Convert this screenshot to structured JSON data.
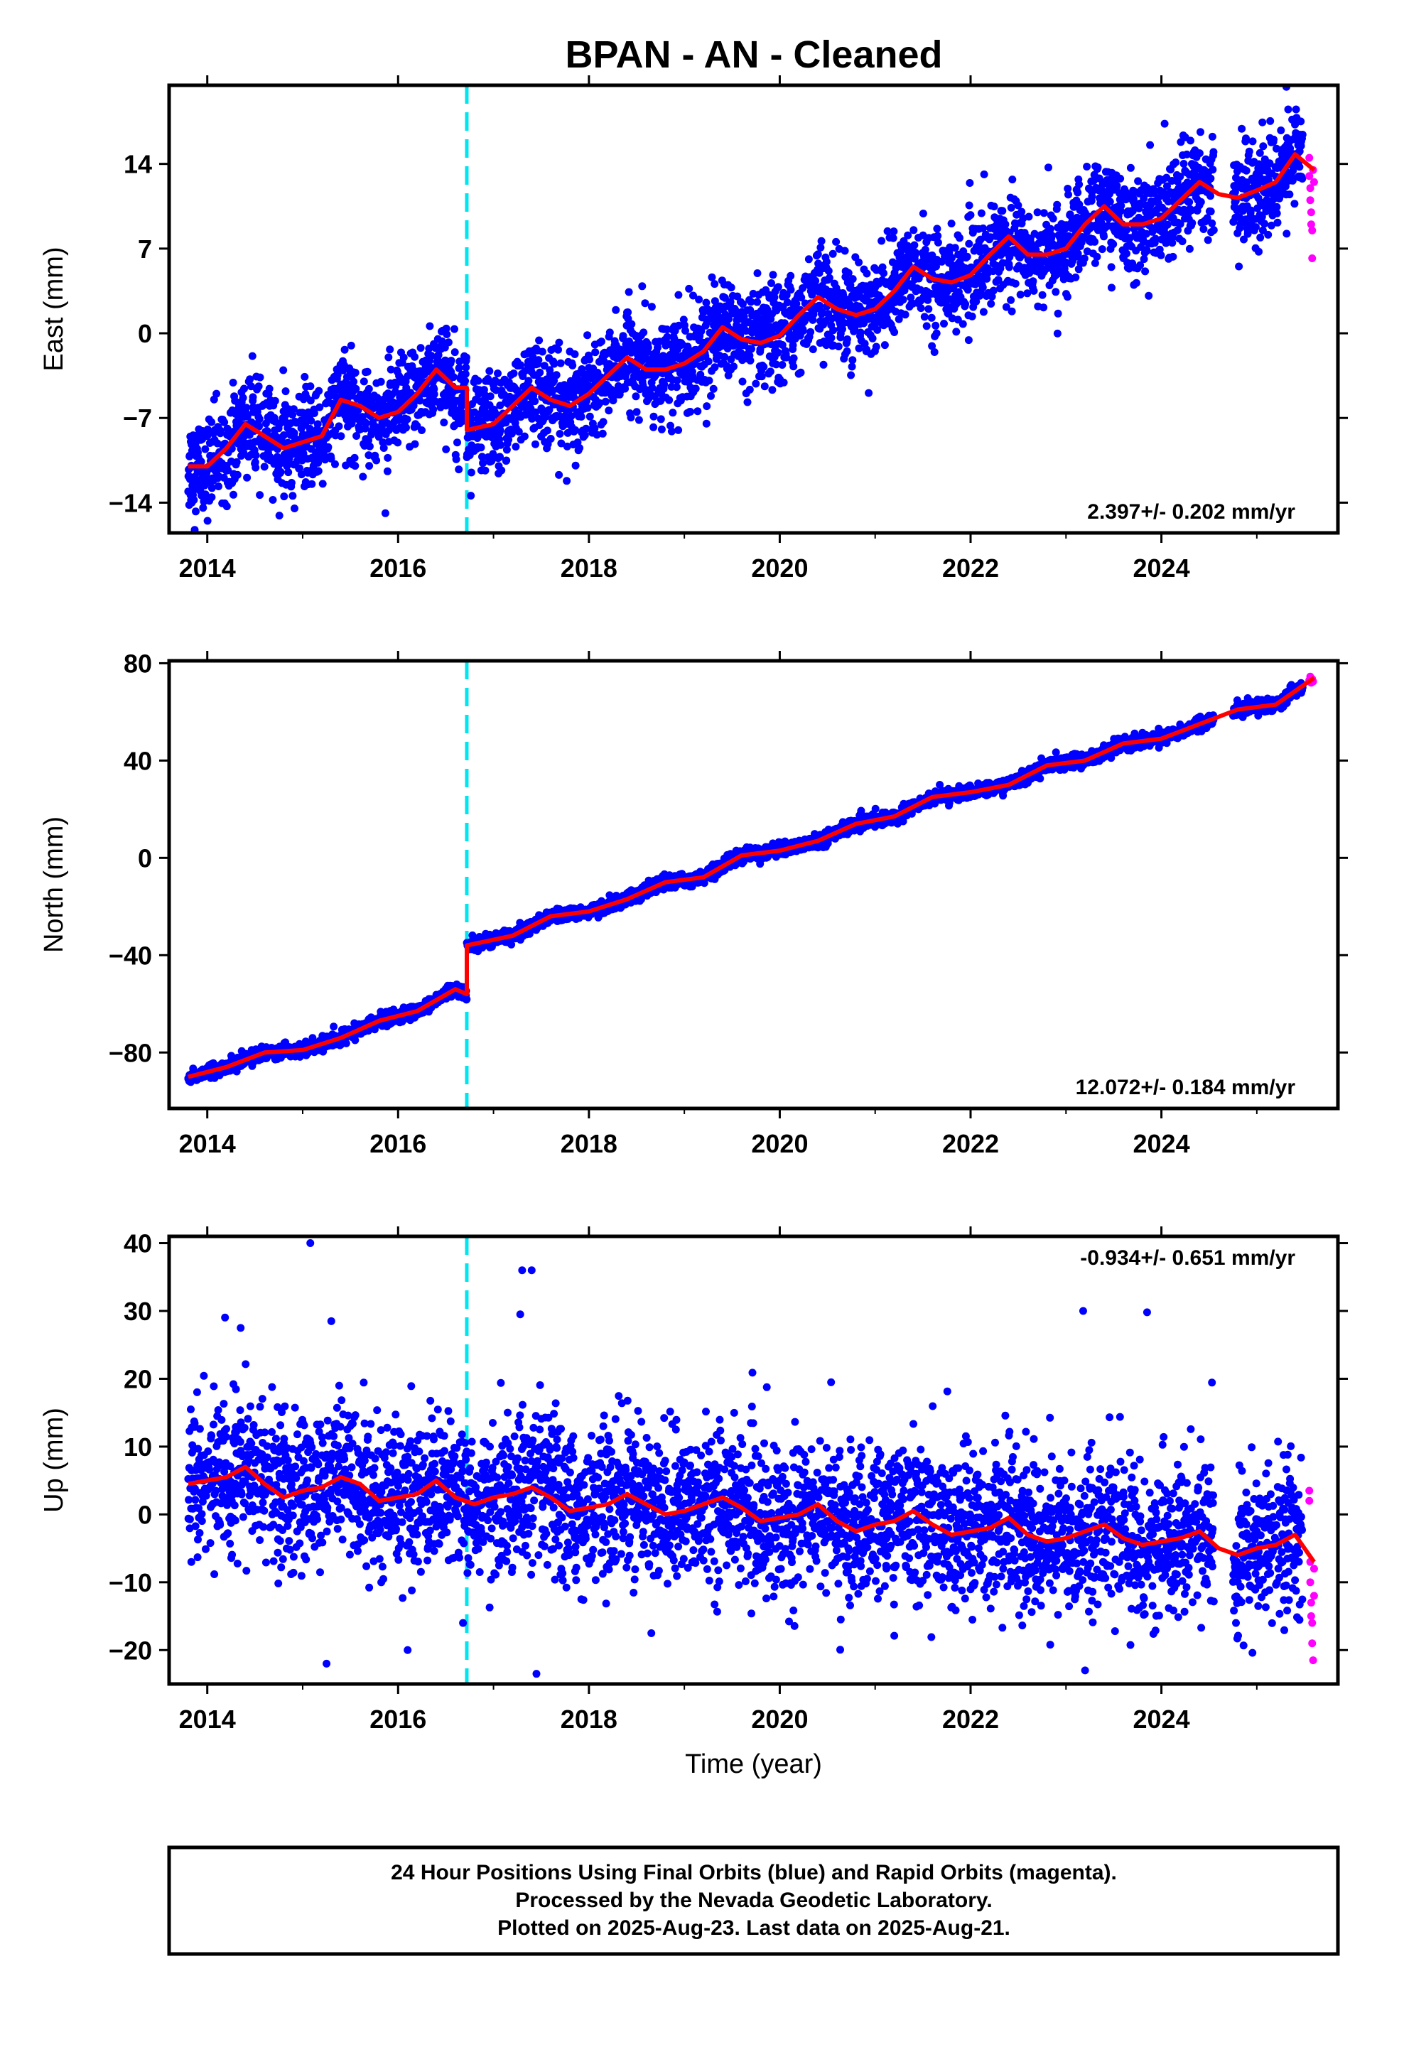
{
  "title": "BPAN  - AN - Cleaned",
  "colors": {
    "final": "#0000ff",
    "rapid": "#ff00ff",
    "model": "#ff0000",
    "event": "#00e5ee"
  },
  "footer": {
    "line1": "24 Hour Positions Using Final Orbits (blue) and Rapid Orbits (magenta).",
    "line2": "Processed by the Nevada Geodetic Laboratory.",
    "line3": "Plotted on 2025-Aug-23. Last data on 2025-Aug-21."
  },
  "chart_data": [
    {
      "type": "scatter",
      "ylabel": "East (mm)",
      "xlabel": "",
      "rate": "2.397+/- 0.202 mm/yr",
      "xlim": [
        2013.6,
        2025.85
      ],
      "ylim": [
        -16.5,
        20.5
      ],
      "xticks": [
        2014,
        2016,
        2018,
        2020,
        2022,
        2024
      ],
      "yticks": [
        -14,
        -7,
        0,
        7,
        14
      ],
      "ytick_labels": [
        "−14",
        "−7",
        "0",
        "7",
        "14"
      ],
      "event_year": 2016.72,
      "series": [
        {
          "name": "Final Orbits",
          "color": "#0000ff",
          "start": 2013.8,
          "end": 2025.48,
          "trend": {
            "base_year": 2013.8,
            "base_value": -10.8,
            "slope": 2.397,
            "seasonal": 1.6,
            "noise": 2.0,
            "offset_after_event": -2.0,
            "gap": [
              2024.55,
              2024.75
            ]
          }
        },
        {
          "name": "Rapid Orbits",
          "color": "#ff00ff",
          "start": 2025.48,
          "end": 2025.63,
          "points": [
            [
              2025.55,
              14.5
            ],
            [
              2025.55,
              13
            ],
            [
              2025.56,
              12
            ],
            [
              2025.56,
              11
            ],
            [
              2025.57,
              10
            ],
            [
              2025.57,
              9
            ],
            [
              2025.58,
              8.5
            ],
            [
              2025.58,
              6.2
            ],
            [
              2025.59,
              13.5
            ],
            [
              2025.6,
              12.5
            ]
          ]
        }
      ],
      "model_line": [
        [
          2013.8,
          -11
        ],
        [
          2014.0,
          -11
        ],
        [
          2014.2,
          -9.5
        ],
        [
          2014.4,
          -7.5
        ],
        [
          2014.6,
          -8.5
        ],
        [
          2014.8,
          -9.5
        ],
        [
          2015.0,
          -9
        ],
        [
          2015.2,
          -8.5
        ],
        [
          2015.4,
          -5.5
        ],
        [
          2015.6,
          -6
        ],
        [
          2015.8,
          -7
        ],
        [
          2016.0,
          -6.5
        ],
        [
          2016.2,
          -5
        ],
        [
          2016.4,
          -3
        ],
        [
          2016.6,
          -4.5
        ],
        [
          2016.72,
          -4.5
        ],
        [
          2016.72,
          -8
        ],
        [
          2017.0,
          -7.5
        ],
        [
          2017.2,
          -6
        ],
        [
          2017.4,
          -4.5
        ],
        [
          2017.6,
          -5.5
        ],
        [
          2017.8,
          -6
        ],
        [
          2018.0,
          -5
        ],
        [
          2018.2,
          -3.5
        ],
        [
          2018.4,
          -2
        ],
        [
          2018.6,
          -3
        ],
        [
          2018.8,
          -3
        ],
        [
          2019.0,
          -2.5
        ],
        [
          2019.2,
          -1.5
        ],
        [
          2019.4,
          0.5
        ],
        [
          2019.6,
          -0.5
        ],
        [
          2019.8,
          -0.8
        ],
        [
          2020.0,
          -0.2
        ],
        [
          2020.2,
          1.5
        ],
        [
          2020.4,
          3
        ],
        [
          2020.6,
          2
        ],
        [
          2020.8,
          1.5
        ],
        [
          2021.0,
          2
        ],
        [
          2021.2,
          3.5
        ],
        [
          2021.4,
          5.5
        ],
        [
          2021.6,
          4.5
        ],
        [
          2021.8,
          4.2
        ],
        [
          2022.0,
          4.8
        ],
        [
          2022.2,
          6.5
        ],
        [
          2022.4,
          8
        ],
        [
          2022.6,
          6.5
        ],
        [
          2022.8,
          6.5
        ],
        [
          2023.0,
          7
        ],
        [
          2023.2,
          9
        ],
        [
          2023.4,
          10.5
        ],
        [
          2023.6,
          9
        ],
        [
          2023.8,
          9
        ],
        [
          2024.0,
          9.5
        ],
        [
          2024.2,
          11
        ],
        [
          2024.4,
          12.5
        ],
        [
          2024.6,
          11.5
        ],
        [
          2024.8,
          11.2
        ],
        [
          2025.0,
          11.8
        ],
        [
          2025.2,
          12.5
        ],
        [
          2025.4,
          14.8
        ],
        [
          2025.6,
          13.5
        ]
      ]
    },
    {
      "type": "scatter",
      "ylabel": "North (mm)",
      "xlabel": "",
      "rate": "12.072+/- 0.184 mm/yr",
      "xlim": [
        2013.6,
        2025.85
      ],
      "ylim": [
        -103,
        81
      ],
      "xticks": [
        2014,
        2016,
        2018,
        2020,
        2022,
        2024
      ],
      "yticks": [
        -80,
        -40,
        0,
        40,
        80
      ],
      "ytick_labels": [
        "−80",
        "−40",
        "0",
        "40",
        "80"
      ],
      "event_year": 2016.72,
      "series": [
        {
          "name": "Final Orbits",
          "color": "#0000ff",
          "start": 2013.8,
          "end": 2025.48,
          "trend": {
            "base_year": 2013.8,
            "base_value": -89.5,
            "slope": 12.072,
            "seasonal": 1.5,
            "noise": 1.3,
            "offset_after_event": 20,
            "gap": [
              2024.55,
              2024.75
            ]
          }
        },
        {
          "name": "Rapid Orbits",
          "color": "#ff00ff",
          "start": 2025.48,
          "end": 2025.63,
          "points": [
            [
              2025.55,
              73
            ],
            [
              2025.56,
              74.5
            ],
            [
              2025.57,
              72
            ],
            [
              2025.58,
              73.5
            ],
            [
              2025.59,
              72.5
            ]
          ]
        }
      ],
      "model_line": [
        [
          2013.8,
          -90
        ],
        [
          2014.2,
          -86
        ],
        [
          2014.6,
          -80
        ],
        [
          2015.0,
          -79
        ],
        [
          2015.4,
          -74
        ],
        [
          2015.8,
          -67
        ],
        [
          2016.2,
          -63
        ],
        [
          2016.6,
          -54
        ],
        [
          2016.72,
          -56
        ],
        [
          2016.72,
          -36
        ],
        [
          2017.2,
          -32
        ],
        [
          2017.6,
          -24
        ],
        [
          2018.0,
          -22
        ],
        [
          2018.4,
          -17
        ],
        [
          2018.8,
          -10
        ],
        [
          2019.2,
          -8
        ],
        [
          2019.6,
          1
        ],
        [
          2020.0,
          3
        ],
        [
          2020.4,
          7
        ],
        [
          2020.8,
          14
        ],
        [
          2021.2,
          17
        ],
        [
          2021.6,
          25
        ],
        [
          2022.0,
          27
        ],
        [
          2022.4,
          30
        ],
        [
          2022.8,
          38
        ],
        [
          2023.2,
          40
        ],
        [
          2023.6,
          47
        ],
        [
          2024.0,
          49
        ],
        [
          2024.4,
          55
        ],
        [
          2024.8,
          61
        ],
        [
          2025.2,
          63
        ],
        [
          2025.6,
          74
        ]
      ]
    },
    {
      "type": "scatter",
      "ylabel": "Up (mm)",
      "xlabel": "Time (year)",
      "rate": "-0.934+/- 0.651 mm/yr",
      "xlim": [
        2013.6,
        2025.85
      ],
      "ylim": [
        -25,
        41
      ],
      "xticks": [
        2014,
        2016,
        2018,
        2020,
        2022,
        2024
      ],
      "yticks": [
        -20,
        -10,
        0,
        10,
        20,
        30,
        40
      ],
      "ytick_labels": [
        "−20",
        "−10",
        "0",
        "10",
        "20",
        "30",
        "40"
      ],
      "event_year": 2016.72,
      "series": [
        {
          "name": "Final Orbits",
          "color": "#0000ff",
          "start": 2013.8,
          "end": 2025.48,
          "trend": {
            "base_year": 2013.8,
            "base_value": 5,
            "slope": -0.934,
            "seasonal": 1.5,
            "noise": 5.5,
            "offset_after_event": 0,
            "gap": [
              2024.55,
              2024.75
            ]
          },
          "outliers": [
            [
              2015.08,
              40
            ],
            [
              2017.3,
              36
            ],
            [
              2017.4,
              36
            ],
            [
              2017.28,
              29.5
            ],
            [
              2023.18,
              30
            ],
            [
              2023.85,
              29.8
            ],
            [
              2015.3,
              28.5
            ],
            [
              2014.35,
              27.5
            ],
            [
              2015.25,
              -22
            ],
            [
              2016.1,
              -20
            ],
            [
              2017.45,
              -23.5
            ],
            [
              2023.2,
              -23
            ],
            [
              2016.68,
              -16
            ]
          ]
        },
        {
          "name": "Rapid Orbits",
          "color": "#ff00ff",
          "start": 2025.48,
          "end": 2025.63,
          "points": [
            [
              2025.55,
              3.5
            ],
            [
              2025.55,
              2
            ],
            [
              2025.56,
              -7
            ],
            [
              2025.56,
              -10
            ],
            [
              2025.57,
              -13
            ],
            [
              2025.57,
              -15
            ],
            [
              2025.58,
              -16
            ],
            [
              2025.58,
              -19
            ],
            [
              2025.59,
              -21.5
            ],
            [
              2025.6,
              -8
            ],
            [
              2025.6,
              -12
            ]
          ]
        }
      ],
      "model_line": [
        [
          2013.8,
          4.5
        ],
        [
          2014.0,
          5
        ],
        [
          2014.2,
          5.5
        ],
        [
          2014.4,
          7
        ],
        [
          2014.6,
          4.5
        ],
        [
          2014.8,
          2.5
        ],
        [
          2015.0,
          3.5
        ],
        [
          2015.2,
          4
        ],
        [
          2015.4,
          5.5
        ],
        [
          2015.6,
          4.5
        ],
        [
          2015.8,
          2
        ],
        [
          2016.0,
          2.5
        ],
        [
          2016.2,
          3
        ],
        [
          2016.4,
          5
        ],
        [
          2016.6,
          2.5
        ],
        [
          2016.8,
          1.5
        ],
        [
          2017.0,
          2.5
        ],
        [
          2017.2,
          3
        ],
        [
          2017.4,
          4
        ],
        [
          2017.6,
          2.5
        ],
        [
          2017.8,
          0.5
        ],
        [
          2018.0,
          1
        ],
        [
          2018.2,
          1.5
        ],
        [
          2018.4,
          3
        ],
        [
          2018.6,
          1.5
        ],
        [
          2018.8,
          0
        ],
        [
          2019.0,
          0.5
        ],
        [
          2019.2,
          1.5
        ],
        [
          2019.4,
          2.5
        ],
        [
          2019.6,
          1
        ],
        [
          2019.8,
          -1
        ],
        [
          2020.0,
          -0.5
        ],
        [
          2020.2,
          0
        ],
        [
          2020.4,
          1.5
        ],
        [
          2020.6,
          -1
        ],
        [
          2020.8,
          -2.5
        ],
        [
          2021.0,
          -1.5
        ],
        [
          2021.2,
          -1
        ],
        [
          2021.4,
          0.5
        ],
        [
          2021.6,
          -1.5
        ],
        [
          2021.8,
          -3
        ],
        [
          2022.0,
          -2.5
        ],
        [
          2022.2,
          -2
        ],
        [
          2022.4,
          -0.5
        ],
        [
          2022.6,
          -3
        ],
        [
          2022.8,
          -4
        ],
        [
          2023.0,
          -3.5
        ],
        [
          2023.2,
          -2.5
        ],
        [
          2023.4,
          -1.5
        ],
        [
          2023.6,
          -3.5
        ],
        [
          2023.8,
          -4.5
        ],
        [
          2024.0,
          -4
        ],
        [
          2024.2,
          -3.5
        ],
        [
          2024.4,
          -2.5
        ],
        [
          2024.6,
          -5
        ],
        [
          2024.8,
          -6
        ],
        [
          2025.0,
          -5
        ],
        [
          2025.2,
          -4.5
        ],
        [
          2025.4,
          -3
        ],
        [
          2025.6,
          -7
        ]
      ]
    }
  ]
}
